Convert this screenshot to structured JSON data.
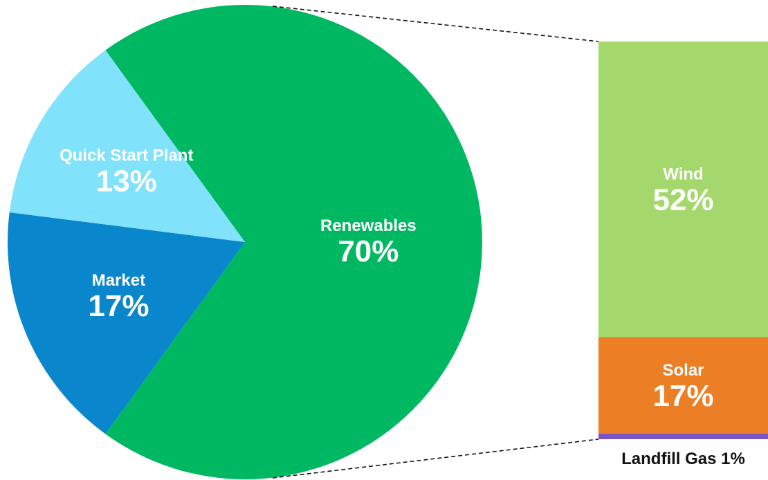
{
  "chart_data": [
    {
      "type": "pie",
      "slices": [
        {
          "label": "Renewables",
          "value": 70,
          "display": "70%",
          "color": "#00b862"
        },
        {
          "label": "Market",
          "value": 17,
          "display": "17%",
          "color": "#0a86cc"
        },
        {
          "label": "Quick Start Plant",
          "value": 13,
          "display": "13%",
          "color": "#80e2fb"
        }
      ]
    },
    {
      "type": "bar",
      "stacked": true,
      "breakdown_of": "Renewables",
      "segments": [
        {
          "label": "Wind",
          "value": 52,
          "display": "52%",
          "color": "#a5d86c"
        },
        {
          "label": "Solar",
          "value": 17,
          "display": "17%",
          "color": "#ec7f26"
        },
        {
          "label": "Landfill Gas",
          "value": 1,
          "display": "Landfill Gas 1%",
          "color": "#7b55c7"
        }
      ]
    }
  ]
}
